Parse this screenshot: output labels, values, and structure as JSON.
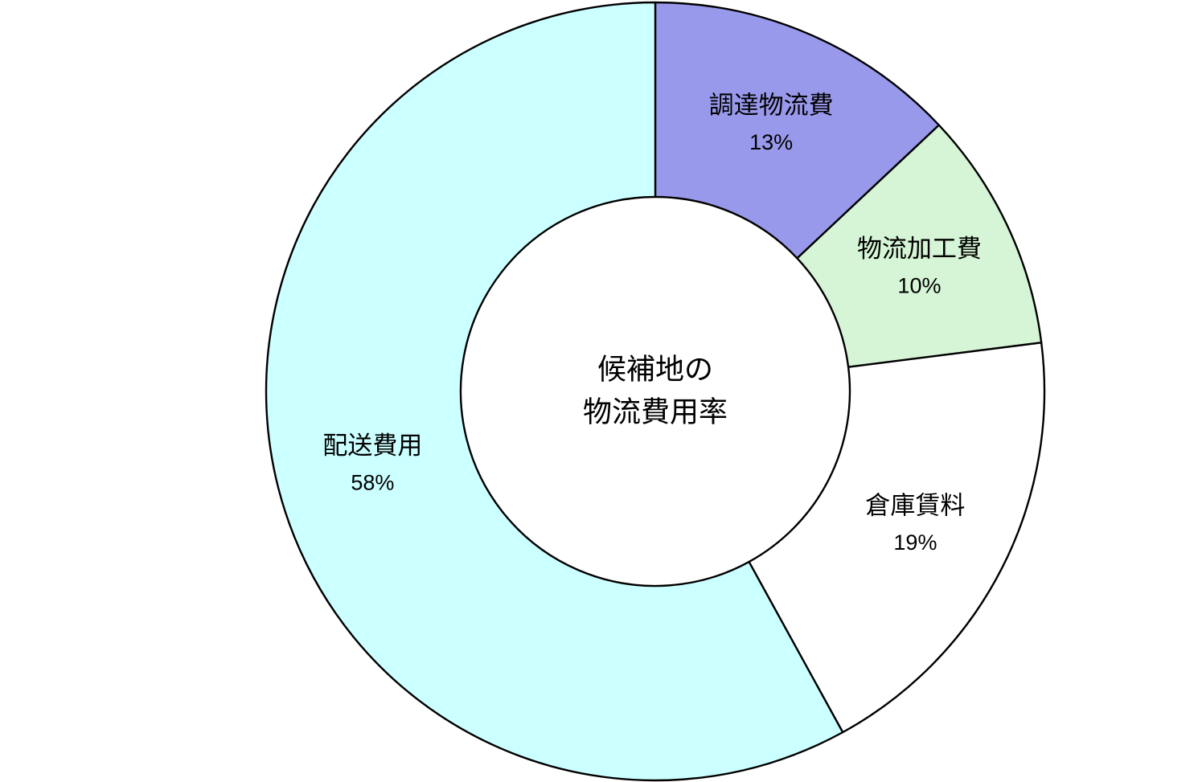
{
  "canvas": {
    "background": "#FFFFFF"
  },
  "chart_data": {
    "type": "pie",
    "variant": "donut",
    "title": "候補地の物流費用率",
    "center_label_lines": [
      "候補地の",
      "物流費用率"
    ],
    "categories": [
      "調達物流費",
      "物流加工費",
      "倉庫賃料",
      "配送費用"
    ],
    "values": [
      13,
      10,
      19,
      58
    ],
    "value_unit": "%",
    "value_labels": [
      "13%",
      "10%",
      "19%",
      "58%"
    ],
    "colors": [
      "#9999EC",
      "#D6F5D6",
      "#FFFFFF",
      "#CCFFFF"
    ],
    "outline_color": "#000000",
    "text_color": "#000000",
    "start_angle_deg": 0,
    "direction": "clockwise",
    "donut_hole_ratio": 0.5,
    "legend": "none",
    "labels_position": "inside",
    "grid": false
  }
}
